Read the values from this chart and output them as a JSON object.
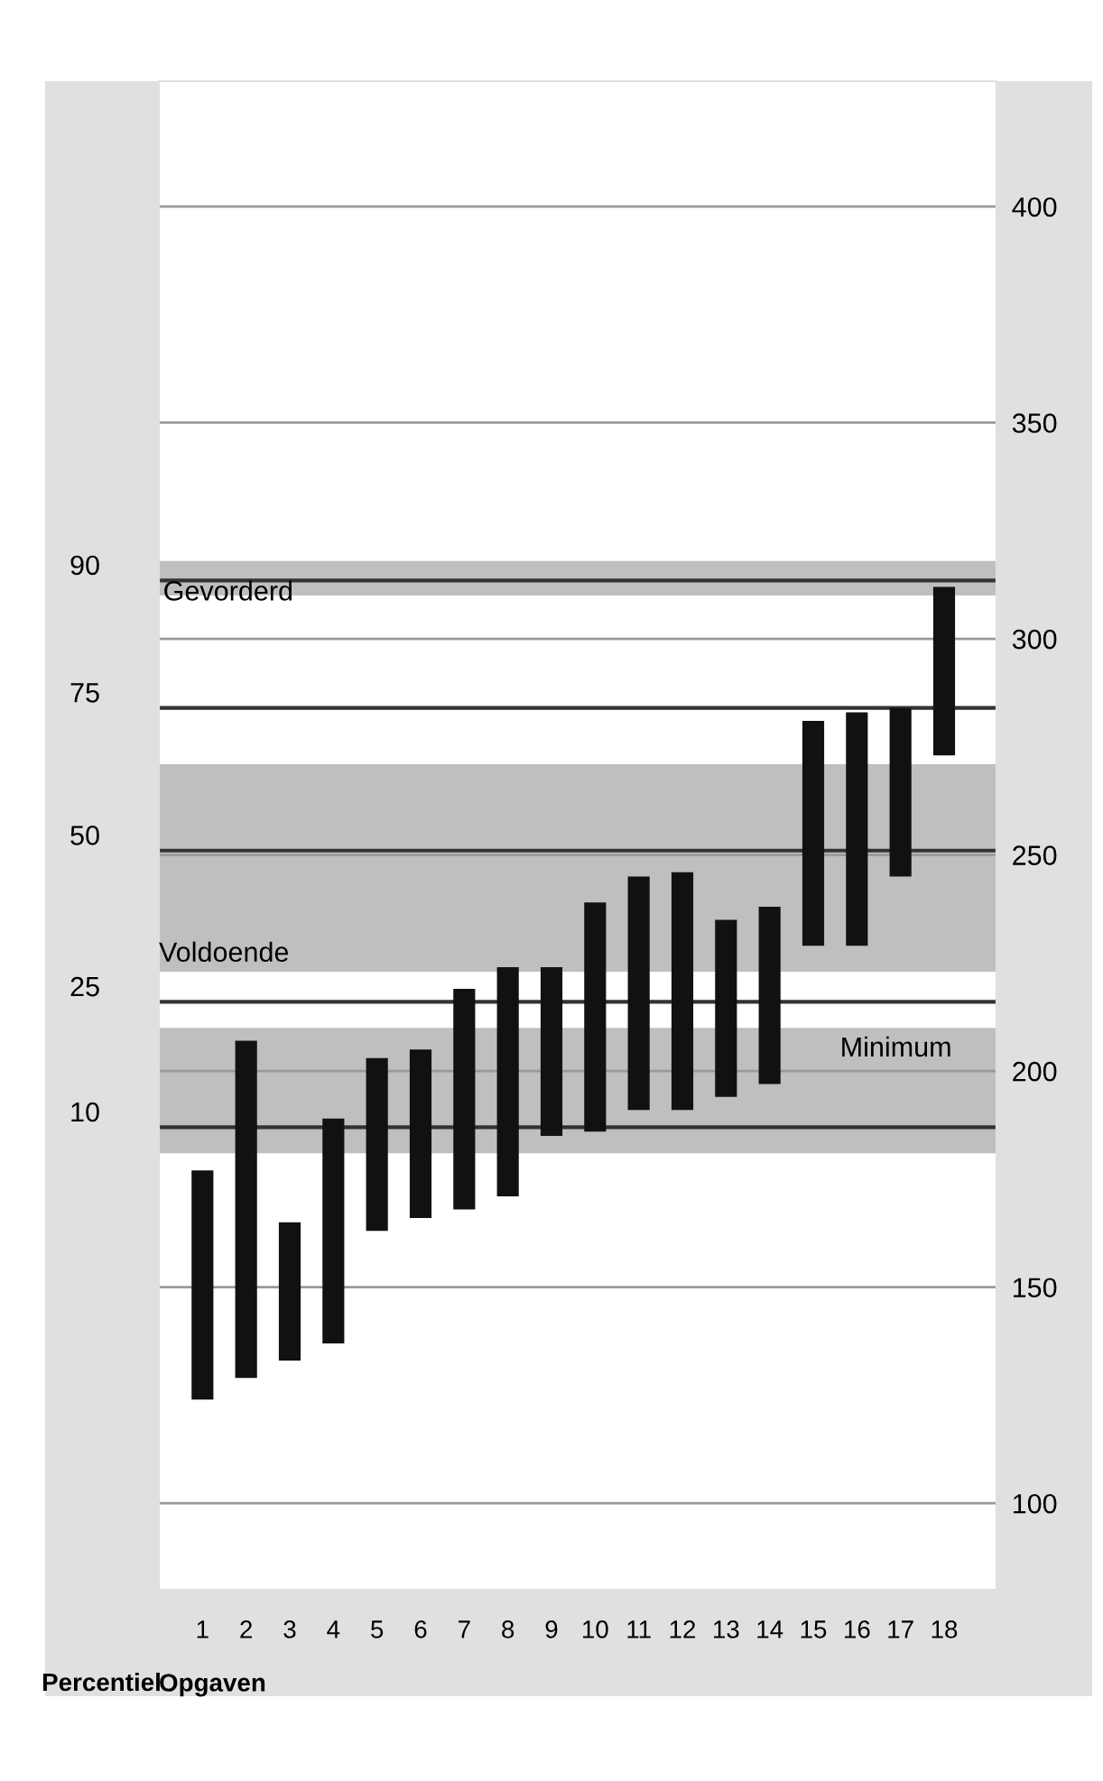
{
  "chart_data": {
    "type": "bar",
    "xlabel": "Opgaven",
    "ylabel": "Percentiel",
    "categories": [
      "1",
      "2",
      "3",
      "4",
      "5",
      "6",
      "7",
      "8",
      "9",
      "10",
      "11",
      "12",
      "13",
      "14",
      "15",
      "16",
      "17",
      "18"
    ],
    "base": [
      124,
      129,
      133,
      137,
      163,
      166,
      168,
      171,
      185,
      186,
      191,
      191,
      194,
      197,
      229,
      229,
      245,
      273
    ],
    "values": [
      53,
      78,
      32,
      52,
      40,
      39,
      51,
      53,
      39,
      53,
      54,
      55,
      41,
      41,
      52,
      54,
      39,
      39
    ],
    "color": "#111111",
    "ylim": [
      80,
      429
    ],
    "yticks": [
      100,
      150,
      200,
      250,
      300,
      350,
      400
    ],
    "grid": "y",
    "bands": [
      {
        "axis": "y",
        "from": 310,
        "to": 318,
        "label": "Gevorderd",
        "color": "#bfbfbf"
      },
      {
        "axis": "y",
        "from": 223,
        "to": 271,
        "label": "Voldoende",
        "color": "#bfbfbf"
      },
      {
        "axis": "y",
        "from": 181,
        "to": 210,
        "label": "Minimum",
        "color": "#bfbfbf"
      }
    ],
    "ref_lines": [
      {
        "axis": "y",
        "value": 313.5,
        "color": "#333333"
      },
      {
        "axis": "y",
        "value": 284,
        "color": "#333333"
      },
      {
        "axis": "y",
        "value": 251,
        "color": "#333333"
      },
      {
        "axis": "y",
        "value": 216,
        "color": "#333333"
      },
      {
        "axis": "y",
        "value": 187,
        "color": "#333333"
      }
    ],
    "annotations": [
      "90",
      "75",
      "50",
      "25",
      "10"
    ]
  }
}
